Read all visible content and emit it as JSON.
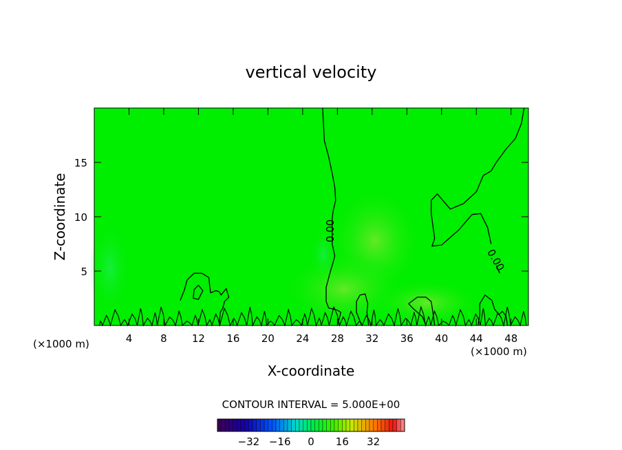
{
  "chart_data": {
    "type": "heatmap",
    "title": "vertical velocity",
    "xlabel": "X-coordinate",
    "ylabel": "Z-coordinate",
    "x_unit": "(×1000 m)",
    "xlim": [
      0,
      50
    ],
    "ylim": [
      0,
      20
    ],
    "x_ticks": [
      4,
      8,
      12,
      16,
      20,
      24,
      28,
      32,
      36,
      40,
      44,
      48
    ],
    "y_ticks": [
      5,
      10,
      15
    ],
    "background_value": 0,
    "contour_labels": [
      {
        "text": "0.00",
        "x": 27.2,
        "z": 8.7,
        "angle": -90
      },
      {
        "text": "0.00",
        "x": 46.2,
        "z": 6.0,
        "angle": 60
      }
    ],
    "zero_contours": [
      {
        "name": "central",
        "points": [
          [
            26.3,
            20
          ],
          [
            26.5,
            17
          ],
          [
            27.0,
            15.5
          ],
          [
            27.4,
            14
          ],
          [
            27.7,
            12.7
          ],
          [
            27.8,
            11.5
          ],
          [
            27.5,
            10.5
          ],
          [
            27.4,
            9.8
          ],
          [
            27.4,
            7.5
          ],
          [
            27.7,
            6.4
          ],
          [
            27.5,
            5.8
          ],
          [
            27.2,
            5.0
          ],
          [
            26.7,
            3.5
          ],
          [
            26.7,
            2.2
          ],
          [
            27.0,
            1.6
          ],
          [
            27.6,
            1.5
          ],
          [
            28.0,
            1.4
          ],
          [
            28.4,
            1.2
          ],
          [
            28.0,
            0.0
          ]
        ]
      },
      {
        "name": "right-lobe",
        "points": [
          [
            49.5,
            20
          ],
          [
            49.2,
            18.6
          ],
          [
            48.5,
            17.2
          ],
          [
            47.4,
            16.2
          ],
          [
            46.3,
            15.0
          ],
          [
            45.7,
            14.2
          ],
          [
            44.8,
            13.8
          ],
          [
            44.0,
            12.3
          ],
          [
            42.5,
            11.2
          ],
          [
            41.0,
            10.7
          ],
          [
            39.5,
            12.1
          ],
          [
            38.8,
            11.5
          ],
          [
            38.8,
            10.3
          ],
          [
            39.2,
            8.0
          ],
          [
            38.9,
            7.3
          ],
          [
            40.0,
            7.4
          ],
          [
            42.0,
            8.8
          ],
          [
            43.5,
            10.2
          ],
          [
            44.5,
            10.3
          ],
          [
            45.3,
            9.0
          ],
          [
            45.7,
            7.5
          ]
        ]
      },
      {
        "name": "right-lobe-lower",
        "points": [
          [
            46.3,
            5.5
          ],
          [
            46.7,
            4.8
          ]
        ]
      },
      {
        "name": "left-cell",
        "points": [
          [
            9.9,
            2.3
          ],
          [
            10.4,
            3.3
          ],
          [
            10.7,
            4.2
          ],
          [
            11.5,
            4.8
          ],
          [
            12.4,
            4.8
          ],
          [
            13.2,
            4.4
          ],
          [
            13.3,
            3.6
          ],
          [
            13.4,
            3.0
          ],
          [
            14.0,
            3.2
          ],
          [
            14.4,
            3.1
          ],
          [
            14.6,
            2.8
          ],
          [
            15.2,
            3.4
          ],
          [
            15.5,
            2.6
          ],
          [
            15.0,
            2.2
          ],
          [
            14.8,
            1.6
          ],
          [
            14.5,
            1.2
          ],
          [
            14.4,
            0.0
          ]
        ]
      },
      {
        "name": "left-cell-inner",
        "points": [
          [
            11.5,
            3.3
          ],
          [
            11.4,
            2.5
          ],
          [
            12.0,
            2.4
          ],
          [
            12.5,
            3.2
          ],
          [
            12.0,
            3.7
          ],
          [
            11.5,
            3.3
          ]
        ]
      },
      {
        "name": "mid-right-cell",
        "points": [
          [
            30.8,
            0.0
          ],
          [
            30.2,
            1.2
          ],
          [
            30.2,
            2.2
          ],
          [
            30.6,
            2.8
          ],
          [
            31.2,
            2.9
          ],
          [
            31.5,
            2.0
          ],
          [
            31.4,
            1.2
          ],
          [
            31.6,
            0.0
          ]
        ]
      },
      {
        "name": "right-cell",
        "points": [
          [
            38.2,
            0.0
          ],
          [
            37.8,
            0.8
          ],
          [
            36.8,
            1.5
          ],
          [
            36.2,
            2.0
          ],
          [
            37.2,
            2.6
          ],
          [
            38.2,
            2.6
          ],
          [
            38.8,
            2.2
          ],
          [
            39.0,
            1.2
          ],
          [
            39.2,
            0.0
          ]
        ]
      },
      {
        "name": "right-cell-2",
        "points": [
          [
            44.2,
            0.0
          ],
          [
            44.4,
            1.0
          ],
          [
            44.4,
            2.0
          ],
          [
            45.0,
            2.8
          ],
          [
            45.8,
            2.3
          ],
          [
            46.1,
            1.5
          ],
          [
            46.6,
            1.0
          ],
          [
            47.0,
            1.3
          ],
          [
            47.4,
            0.9
          ],
          [
            47.6,
            0.0
          ]
        ]
      }
    ],
    "colorbar": {
      "title": "CONTOUR INTERVAL = 5.000E+00",
      "min": -48,
      "max": 48,
      "ticks": [
        -32,
        -16,
        0,
        16,
        32
      ]
    }
  }
}
